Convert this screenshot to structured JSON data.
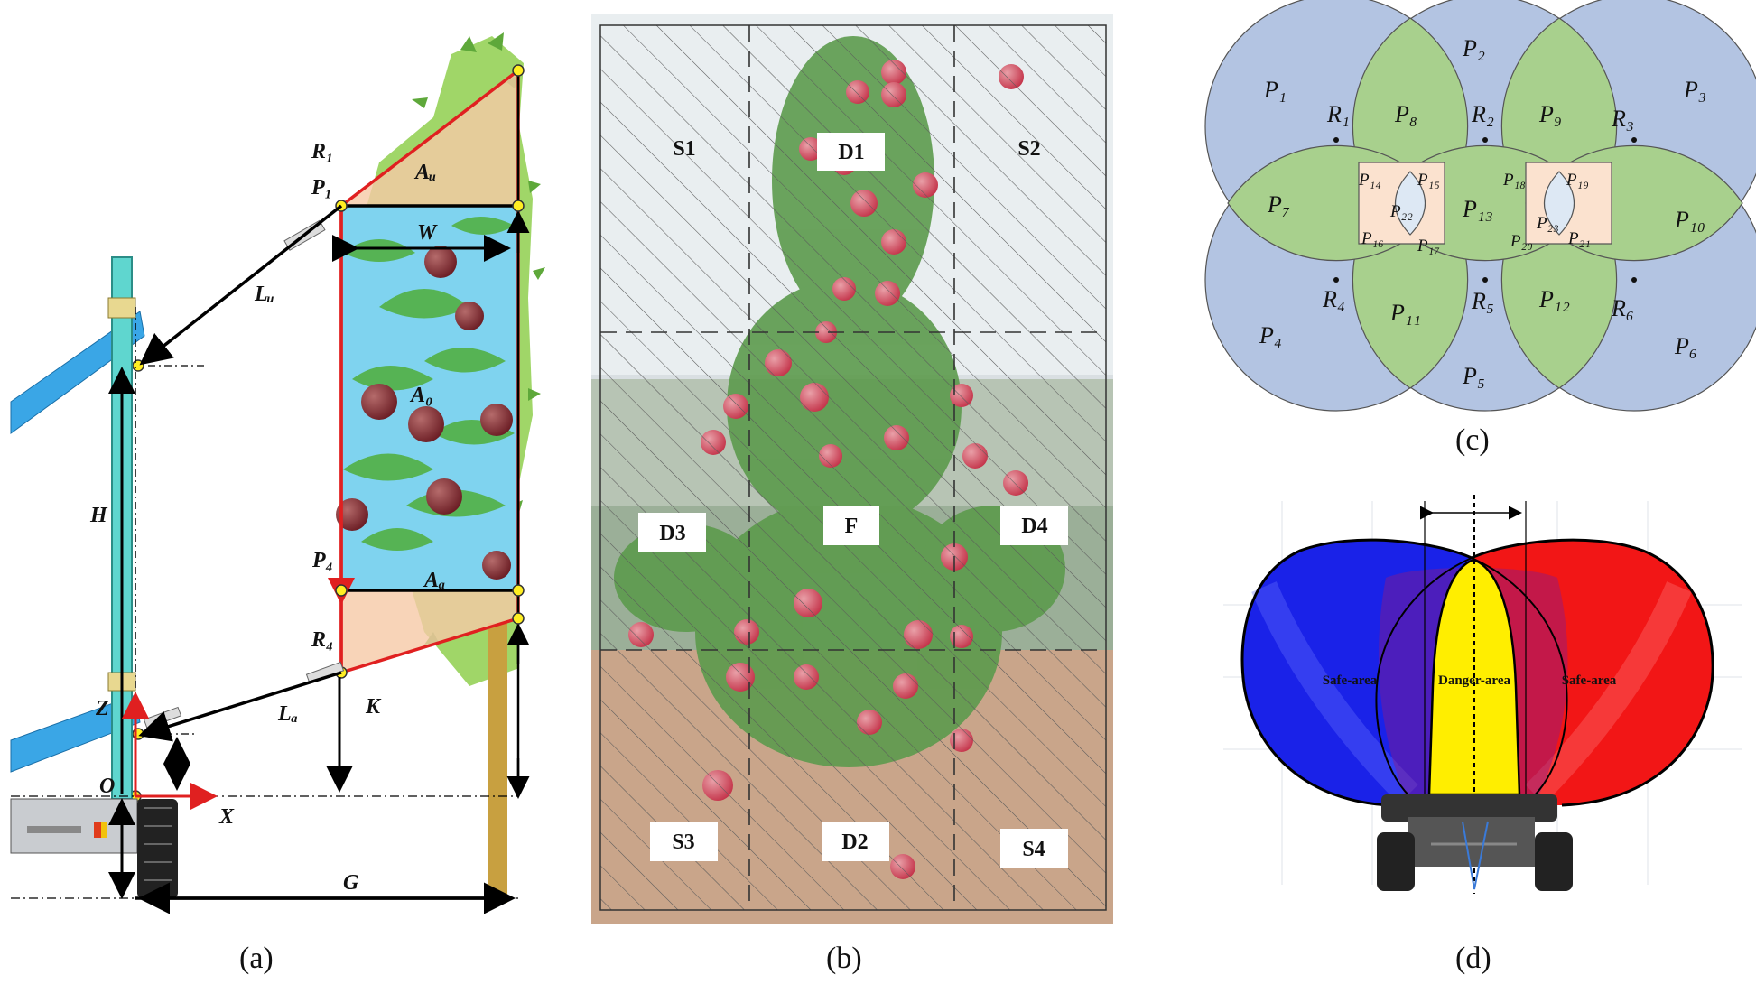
{
  "panel_a": {
    "caption": "(a)",
    "labels": {
      "R1": "R₁",
      "P1": "P₁",
      "Au": "Aᵤ",
      "W": "W",
      "Lu": "Lᵤ",
      "H": "H",
      "A0": "A₀",
      "P4": "P₄",
      "Ad": "Aₐ",
      "R4": "R₄",
      "Ld": "Lₐ",
      "K": "K",
      "Z": "Z",
      "O": "O",
      "X": "X",
      "G": "G"
    }
  },
  "panel_b": {
    "caption": "(b)",
    "zones": [
      "S1",
      "D1",
      "S2",
      "D3",
      "F",
      "D4",
      "S3",
      "D2",
      "S4"
    ]
  },
  "panel_c": {
    "caption": "(c)",
    "regions": {
      "P1": "P₁",
      "P2": "P₂",
      "P3": "P₃",
      "P4": "P₄",
      "P5": "P₅",
      "P6": "P₆",
      "P7": "P₇",
      "P8": "P₈",
      "P9": "P₉",
      "P10": "P₁₀",
      "P11": "P₁₁",
      "P12": "P₁₂",
      "P13": "P₁₃",
      "P14": "P₁₄",
      "P15": "P₁₅",
      "P16": "P₁₆",
      "P17": "P₁₇",
      "P18": "P₁₈",
      "P19": "P₁₉",
      "P20": "P₂₀",
      "P21": "P₂₁",
      "P22": "P₂₂",
      "P23": "P₂₃"
    },
    "points": {
      "R1": "R₁",
      "R2": "R₂",
      "R3": "R₃",
      "R4": "R₄",
      "R5": "R₅",
      "R6": "R₆"
    },
    "colors": {
      "outer": "#b3c4e2",
      "green": "#a8d08d",
      "peach": "#fbe2cf",
      "center": "#dde8f4"
    }
  },
  "panel_d": {
    "caption": "(d)",
    "labels": {
      "safe_left": "Safe-area",
      "danger": "Danger-area",
      "safe_right": "Safe-area"
    },
    "colors": {
      "left": "#0a0ae0",
      "right": "#f01010",
      "danger": "#ffee00"
    }
  }
}
